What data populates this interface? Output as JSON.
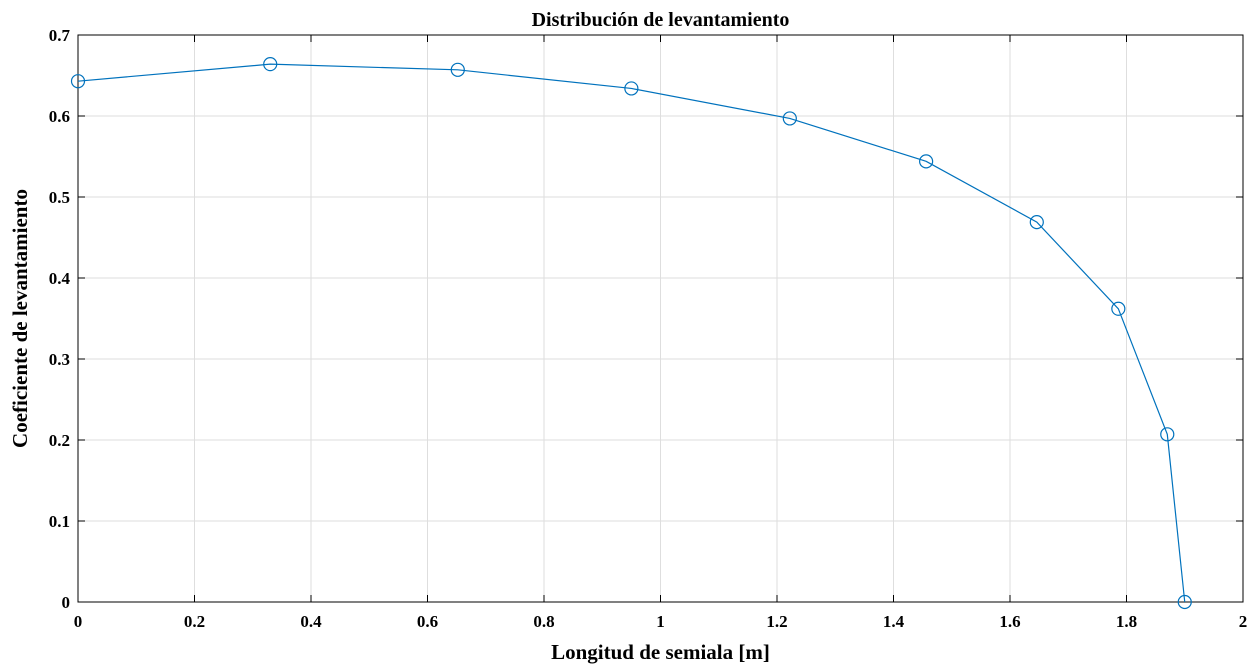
{
  "chart_data": {
    "type": "line",
    "title": "Distribución de levantamiento",
    "xlabel": "Longitud de semiala [m]",
    "ylabel": "Coeficiente de levantamiento",
    "xlim": [
      0,
      2
    ],
    "ylim": [
      0,
      0.7
    ],
    "xticks": [
      0,
      0.2,
      0.4,
      0.6,
      0.8,
      1,
      1.2,
      1.4,
      1.6,
      1.8,
      2
    ],
    "xtick_labels": [
      "0",
      "0.2",
      "0.4",
      "0.6",
      "0.8",
      "1",
      "1.2",
      "1.4",
      "1.6",
      "1.8",
      "2"
    ],
    "yticks": [
      0,
      0.1,
      0.2,
      0.3,
      0.4,
      0.5,
      0.6,
      0.7
    ],
    "ytick_labels": [
      "0",
      "0.1",
      "0.2",
      "0.3",
      "0.4",
      "0.5",
      "0.6",
      "0.7"
    ],
    "grid": true,
    "marker": "circle",
    "color": "#0072BD",
    "series": [
      {
        "x": [
          0,
          0.33,
          0.652,
          0.95,
          1.222,
          1.456,
          1.646,
          1.786,
          1.87,
          1.9
        ],
        "y": [
          0.643,
          0.664,
          0.657,
          0.634,
          0.597,
          0.544,
          0.469,
          0.362,
          0.207,
          0
        ]
      }
    ]
  }
}
